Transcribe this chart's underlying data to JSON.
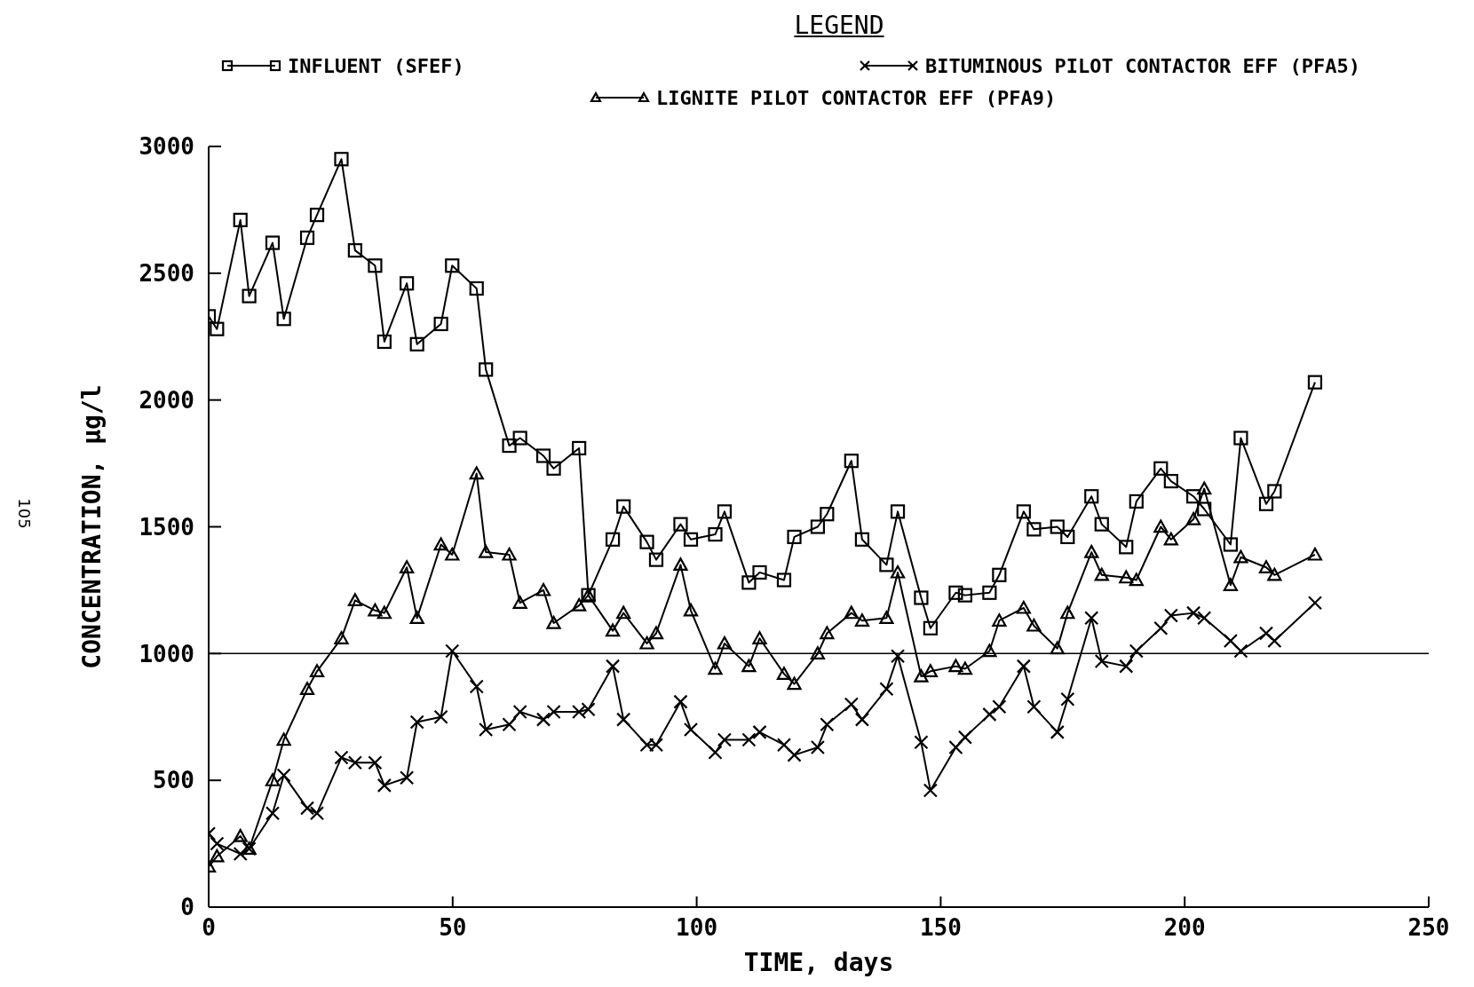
{
  "chart_data": {
    "type": "line",
    "legend_title": "LEGEND",
    "xlabel": "TIME, days",
    "ylabel": "CONCENTRATION, µg/l",
    "x": [
      0,
      1.7,
      6.5,
      8.3,
      13.1,
      15.4,
      20.2,
      22.2,
      27.2,
      30,
      34.1,
      36,
      40.6,
      42.7,
      47.6,
      49.9,
      54.9,
      56.8,
      61.6,
      63.8,
      68.6,
      70.7,
      75.9,
      77.8,
      82.8,
      85,
      89.8,
      91.7,
      96.7,
      98.8,
      103.8,
      105.7,
      110.7,
      112.9,
      117.9,
      120,
      124.8,
      126.7,
      131.7,
      133.9,
      138.9,
      141.2,
      146,
      147.9,
      153.1,
      155,
      160,
      162,
      167,
      169.1,
      173.9,
      176,
      180.9,
      183,
      188,
      190.1,
      195.1,
      197.2,
      201.8,
      204,
      209.4,
      211.5,
      216.7,
      218.4,
      226.7
    ],
    "series": [
      {
        "name": "INFLUENT (SFEF)",
        "color": "#000000",
        "marker": "square",
        "values": [
          2330,
          2280,
          2710,
          2410,
          2620,
          2320,
          2640,
          2730,
          2950,
          2590,
          2530,
          2230,
          2460,
          2220,
          2300,
          2530,
          2440,
          2120,
          1820,
          1850,
          1780,
          1730,
          1810,
          1230,
          1450,
          1580,
          1440,
          1370,
          1510,
          1450,
          1470,
          1560,
          1280,
          1320,
          1290,
          1460,
          1500,
          1550,
          1760,
          1450,
          1350,
          1560,
          1220,
          1100,
          1240,
          1230,
          1240,
          1310,
          1560,
          1490,
          1500,
          1460,
          1620,
          1510,
          1420,
          1600,
          1730,
          1680,
          1620,
          1570,
          1430,
          1850,
          1590,
          1640,
          2070
        ]
      },
      {
        "name": "BITUMINOUS PILOT CONTACTOR EFF (PFA5)",
        "color": "#000000",
        "marker": "cross",
        "values": [
          290,
          250,
          210,
          230,
          370,
          520,
          390,
          370,
          590,
          570,
          570,
          480,
          510,
          730,
          750,
          1010,
          870,
          700,
          720,
          770,
          740,
          770,
          770,
          780,
          950,
          740,
          640,
          640,
          810,
          700,
          610,
          660,
          660,
          690,
          640,
          600,
          630,
          720,
          800,
          740,
          860,
          990,
          650,
          460,
          630,
          670,
          760,
          790,
          950,
          790,
          690,
          820,
          1140,
          970,
          950,
          1010,
          1100,
          1150,
          1160,
          1140,
          1050,
          1010,
          1080,
          1050,
          1200
        ]
      },
      {
        "name": "LIGNITE PILOT CONTACTOR EFF (PFA9)",
        "color": "#000000",
        "marker": "triangle",
        "values": [
          160,
          200,
          280,
          230,
          500,
          660,
          860,
          930,
          1060,
          1210,
          1170,
          1160,
          1340,
          1140,
          1430,
          1390,
          1710,
          1400,
          1390,
          1200,
          1250,
          1120,
          1190,
          1230,
          1090,
          1160,
          1040,
          1080,
          1350,
          1170,
          940,
          1040,
          950,
          1060,
          920,
          880,
          1000,
          1080,
          1160,
          1130,
          1140,
          1320,
          910,
          930,
          950,
          940,
          1010,
          1130,
          1180,
          1110,
          1020,
          1160,
          1400,
          1310,
          1300,
          1290,
          1500,
          1450,
          1530,
          1650,
          1270,
          1380,
          1340,
          1310,
          1390
        ]
      }
    ],
    "xlim": [
      0,
      250
    ],
    "xticks": [
      0,
      50,
      100,
      150,
      200,
      250
    ],
    "ylim": [
      0,
      3000
    ],
    "yticks": [
      0,
      500,
      1000,
      1500,
      2000,
      2500,
      3000
    ],
    "ref_lines": [
      {
        "axis": "y",
        "value": 1000,
        "label": null
      }
    ],
    "legend": "top",
    "annotations": [
      "105"
    ]
  }
}
